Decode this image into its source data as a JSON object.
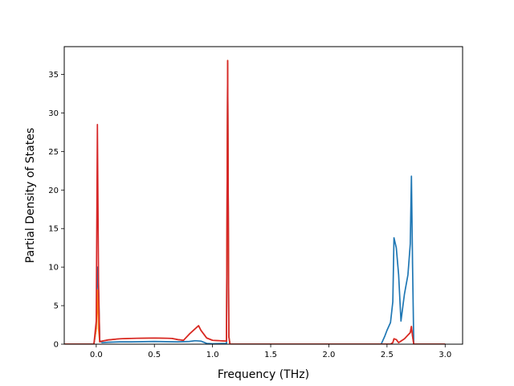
{
  "chart_data": {
    "type": "line",
    "title": "",
    "xlabel": "Frequency (THz)",
    "ylabel": "Partial Density of States",
    "xlim": [
      -0.275,
      3.15
    ],
    "ylim": [
      0,
      38.6
    ],
    "xticks": [
      0.0,
      0.5,
      1.0,
      1.5,
      2.0,
      2.5,
      3.0
    ],
    "xtick_labels": [
      "0.0",
      "0.5",
      "1.0",
      "1.5",
      "2.0",
      "2.5",
      "3.0"
    ],
    "yticks": [
      0,
      5,
      10,
      15,
      20,
      25,
      30,
      35
    ],
    "ytick_labels": [
      "0",
      "5",
      "10",
      "15",
      "20",
      "25",
      "30",
      "35"
    ],
    "grid": false,
    "legend": "none",
    "series": [
      {
        "color": "#1f77b4",
        "x": [
          -0.27,
          -0.02,
          0.0,
          0.01,
          0.02,
          0.03,
          0.05,
          0.1,
          0.2,
          0.3,
          0.5,
          0.7,
          0.8,
          0.85,
          0.9,
          0.95,
          1.0,
          1.12,
          1.13,
          1.14,
          1.15,
          1.2,
          1.5,
          2.0,
          2.45,
          2.48,
          2.5,
          2.53,
          2.55,
          2.56,
          2.58,
          2.6,
          2.62,
          2.65,
          2.68,
          2.7,
          2.71,
          2.72,
          2.73,
          3.0
        ],
        "y": [
          0,
          0,
          2,
          10,
          7,
          0.5,
          0.2,
          0.25,
          0.3,
          0.3,
          0.35,
          0.3,
          0.35,
          0.45,
          0.4,
          0.1,
          0.05,
          0.1,
          36.5,
          1,
          0,
          0,
          0,
          0,
          0,
          1,
          1.8,
          2.8,
          5.5,
          13.8,
          12.5,
          9,
          3,
          6.5,
          9,
          13,
          21.8,
          10,
          0,
          0
        ]
      },
      {
        "color": "#ff7f0e",
        "x": [
          -0.27,
          -0.02,
          0.0,
          0.01,
          0.02,
          0.03,
          0.05,
          0.1,
          0.2,
          0.3,
          0.5,
          0.65,
          0.7,
          0.75,
          0.8,
          0.85,
          0.88,
          0.9,
          0.95,
          1.0,
          1.12,
          1.13,
          1.14,
          1.15,
          1.2,
          1.5,
          2.0,
          2.5,
          2.53,
          2.55,
          2.56,
          2.58,
          2.6,
          2.65,
          2.7,
          2.71,
          2.72,
          2.73,
          3.0
        ],
        "y": [
          0,
          0,
          2,
          7,
          2,
          0.3,
          0.4,
          0.55,
          0.7,
          0.75,
          0.8,
          0.75,
          0.6,
          0.5,
          1.3,
          2.0,
          2.4,
          1.8,
          0.8,
          0.5,
          0.4,
          36.8,
          1,
          0,
          0,
          0,
          0,
          0,
          0,
          0.2,
          0.7,
          0.6,
          0.2,
          0.7,
          1.5,
          2.3,
          1,
          0,
          0
        ]
      },
      {
        "color": "#d62728",
        "x": [
          -0.27,
          -0.02,
          0.0,
          0.01,
          0.02,
          0.03,
          0.05,
          0.1,
          0.2,
          0.3,
          0.5,
          0.65,
          0.7,
          0.75,
          0.8,
          0.85,
          0.88,
          0.9,
          0.95,
          1.0,
          1.12,
          1.13,
          1.14,
          1.15,
          1.2,
          1.5,
          2.0,
          2.5,
          2.53,
          2.55,
          2.56,
          2.58,
          2.6,
          2.65,
          2.7,
          2.71,
          2.72,
          2.73,
          3.0
        ],
        "y": [
          0,
          0,
          3,
          28.5,
          8,
          0.3,
          0.4,
          0.55,
          0.7,
          0.75,
          0.8,
          0.75,
          0.6,
          0.5,
          1.3,
          2.0,
          2.4,
          1.8,
          0.8,
          0.5,
          0.4,
          36.8,
          1,
          0,
          0,
          0,
          0,
          0,
          0,
          0.2,
          0.7,
          0.6,
          0.2,
          0.7,
          1.5,
          2.3,
          1,
          0,
          0
        ]
      }
    ]
  }
}
